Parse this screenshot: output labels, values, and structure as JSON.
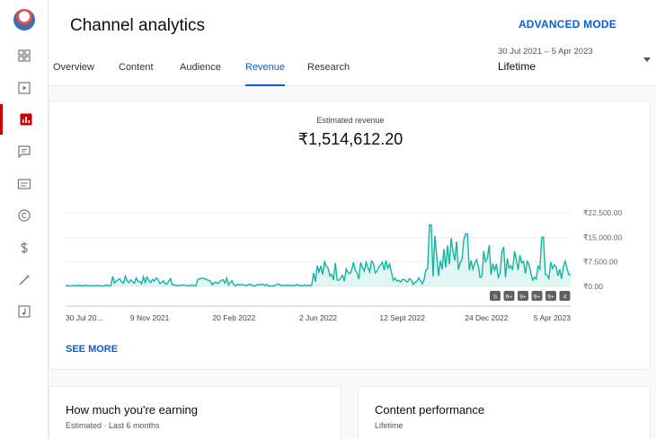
{
  "header": {
    "title": "Channel analytics",
    "advanced_mode": "ADVANCED MODE",
    "tabs": [
      {
        "label": "Overview"
      },
      {
        "label": "Content"
      },
      {
        "label": "Audience"
      },
      {
        "label": "Revenue"
      },
      {
        "label": "Research"
      }
    ],
    "active_tab": "Revenue",
    "date_range": {
      "dates": "30 Jul 2021 – 5 Apr 2023",
      "label": "Lifetime"
    }
  },
  "revenue_card": {
    "metric_label": "Estimated revenue",
    "metric_value": "₹1,514,612.20",
    "see_more": "SEE MORE"
  },
  "chart_data": {
    "type": "area",
    "color": "#12b5a2",
    "y_ticks": [
      "₹22,500.00",
      "₹15,000.00",
      "₹7,500.00",
      "₹0.00"
    ],
    "ylim": [
      0,
      22500
    ],
    "x_ticks": [
      "30 Jul 20...",
      "9 Nov 2021",
      "20 Feb 2022",
      "2 Jun 2022",
      "12 Sept 2022",
      "24 Dec 2022",
      "5 Apr 2023"
    ],
    "markers": [
      "S",
      "9+",
      "9+",
      "9+",
      "9+",
      "4"
    ],
    "segments": [
      {
        "x": [
          0,
          0.09
        ],
        "value": 300
      },
      {
        "x": [
          0.09,
          0.21
        ],
        "value": 2200
      },
      {
        "x": [
          0.21,
          0.26
        ],
        "value": 400
      },
      {
        "x": [
          0.26,
          0.33
        ],
        "value": 1800
      },
      {
        "x": [
          0.33,
          0.49
        ],
        "value": 500
      },
      {
        "x": [
          0.49,
          0.65
        ],
        "value": 5500
      },
      {
        "x": [
          0.65,
          0.71
        ],
        "value": 1800
      },
      {
        "x": [
          0.71,
          0.8
        ],
        "value": 11000
      },
      {
        "x": [
          0.8,
          0.9
        ],
        "value": 9500
      },
      {
        "x": [
          0.9,
          1.0
        ],
        "value": 5500
      }
    ],
    "peaks": [
      {
        "x": 0.723,
        "value": 18800
      },
      {
        "x": 0.795,
        "value": 16000
      },
      {
        "x": 0.944,
        "value": 15000
      }
    ]
  },
  "bottom_cards": [
    {
      "title": "How much you're earning",
      "subtitle": "Estimated · Last 6 months"
    },
    {
      "title": "Content performance",
      "subtitle": "Lifetime"
    }
  ]
}
